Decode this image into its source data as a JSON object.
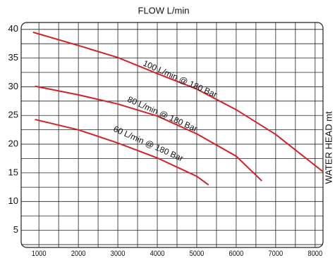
{
  "chart_data": {
    "type": "line",
    "title": "FLOW L/min",
    "y_label": "WATER HEAD mt",
    "xlim": [
      550,
      8200
    ],
    "ylim": [
      2,
      41.2
    ],
    "xticks": [
      1000,
      2000,
      3000,
      4000,
      5000,
      6000,
      7000,
      8000
    ],
    "yticks": [
      5,
      10,
      15,
      20,
      25,
      30,
      35,
      40
    ],
    "xgrid": [
      1000,
      1500,
      2000,
      2500,
      3000,
      3500,
      4000,
      4500,
      5000,
      5500,
      6000,
      6500,
      7000,
      7500,
      8000
    ],
    "ygrid": [
      2.5,
      5,
      7.5,
      10,
      12.5,
      15,
      17.5,
      20,
      22.5,
      25,
      27.5,
      30,
      32.5,
      35,
      37.5,
      40
    ],
    "grid": true,
    "series": [
      {
        "name": "100 L/min @ 180 Bar",
        "color": "#d42027",
        "x": [
          850,
          2000,
          3000,
          4000,
          5000,
          6000,
          7000,
          8200
        ],
        "values": [
          39.5,
          37.2,
          35.1,
          32.3,
          29.6,
          26.0,
          21.7,
          15.2
        ]
      },
      {
        "name": "80 L/min @ 180 Bar",
        "color": "#d42027",
        "x": [
          900,
          2000,
          3000,
          4000,
          5000,
          6000,
          6650
        ],
        "values": [
          30.1,
          28.6,
          27.0,
          24.9,
          21.8,
          17.9,
          13.6
        ]
      },
      {
        "name": "60 L/min @ 180 Bar",
        "color": "#d42027",
        "x": [
          900,
          2000,
          3000,
          4000,
          5000,
          5300
        ],
        "values": [
          24.3,
          22.5,
          20.2,
          17.6,
          14.4,
          12.9
        ]
      }
    ]
  }
}
